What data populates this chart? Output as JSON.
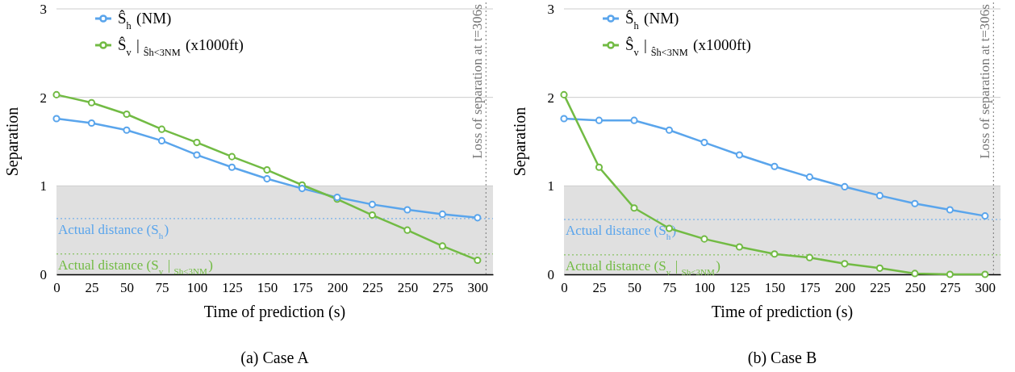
{
  "chart_data": [
    {
      "type": "line",
      "title": "(a)  Case A",
      "xlabel": "Time of prediction (s)",
      "ylabel": "Separation",
      "x": [
        0,
        25,
        50,
        75,
        100,
        125,
        150,
        175,
        200,
        225,
        250,
        275,
        300
      ],
      "series": [
        {
          "name": "Ŝ$_{h}$ (NM)",
          "color": "#5aa5ec",
          "values": [
            1.76,
            1.71,
            1.63,
            1.51,
            1.35,
            1.21,
            1.08,
            0.97,
            0.87,
            0.79,
            0.73,
            0.68,
            0.64
          ]
        },
        {
          "name": "Ŝ$_{v}$ | $_{Ŝh<3NM}$ (x1000ft)",
          "color": "#72bb44",
          "values": [
            2.03,
            1.94,
            1.81,
            1.64,
            1.49,
            1.33,
            1.18,
            1.01,
            0.85,
            0.67,
            0.5,
            0.32,
            0.16
          ]
        }
      ],
      "xlim": [
        0,
        311
      ],
      "xticks": [
        0,
        25,
        50,
        75,
        100,
        125,
        150,
        175,
        200,
        225,
        250,
        275,
        300
      ],
      "ylim": [
        0,
        3
      ],
      "yticks": [
        0,
        1,
        2,
        3
      ],
      "grid": "y",
      "legend": "top left",
      "marker": "circle",
      "line_style": "solid",
      "bands": [
        {
          "axis": "y",
          "from": 0,
          "to": 1,
          "color": "#e0e0e0"
        }
      ],
      "ref_lines": [
        {
          "axis": "y",
          "value": 0.63,
          "label": "Actual distance (S$_{h}$)",
          "color": "#5aa5ec",
          "line_style": "dotted"
        },
        {
          "axis": "y",
          "value": 0.23,
          "label": "Actual distance (S$_{v}$ | $_{Sh<3NM}$)",
          "color": "#72bb44",
          "line_style": "dotted"
        },
        {
          "axis": "x",
          "value": 306,
          "label": "Loss of separation at t=306s",
          "color": "#777777",
          "line_style": "dotted"
        }
      ]
    },
    {
      "type": "line",
      "title": "(b)  Case B",
      "xlabel": "Time of prediction (s)",
      "ylabel": "Separation",
      "x": [
        0,
        25,
        50,
        75,
        100,
        125,
        150,
        175,
        200,
        225,
        250,
        275,
        300
      ],
      "series": [
        {
          "name": "Ŝ$_{h}$ (NM)",
          "color": "#5aa5ec",
          "values": [
            1.76,
            1.74,
            1.74,
            1.63,
            1.49,
            1.35,
            1.22,
            1.1,
            0.99,
            0.89,
            0.8,
            0.73,
            0.66
          ]
        },
        {
          "name": "Ŝ$_{v}$ | $_{Ŝh<3NM}$ (x1000ft)",
          "color": "#72bb44",
          "values": [
            2.03,
            1.21,
            0.75,
            0.52,
            0.4,
            0.31,
            0.23,
            0.19,
            0.12,
            0.07,
            0.01,
            0,
            0
          ]
        }
      ],
      "xlim": [
        0,
        311
      ],
      "xticks": [
        0,
        25,
        50,
        75,
        100,
        125,
        150,
        175,
        200,
        225,
        250,
        275,
        300
      ],
      "ylim": [
        0,
        3
      ],
      "yticks": [
        0,
        1,
        2,
        3
      ],
      "grid": "y",
      "legend": "top left",
      "marker": "circle",
      "line_style": "solid",
      "bands": [
        {
          "axis": "y",
          "from": 0,
          "to": 1,
          "color": "#e0e0e0"
        }
      ],
      "ref_lines": [
        {
          "axis": "y",
          "value": 0.62,
          "label": "Actual distance (S$_{h}$)",
          "color": "#5aa5ec",
          "line_style": "dotted"
        },
        {
          "axis": "y",
          "value": 0.22,
          "label": "Actual distance (S$_{v}$ | $_{Sh<3NM}$)",
          "color": "#72bb44",
          "line_style": "dotted"
        },
        {
          "axis": "x",
          "value": 306,
          "label": "Loss of separation at t=306s",
          "color": "#777777",
          "line_style": "dotted"
        }
      ]
    }
  ]
}
